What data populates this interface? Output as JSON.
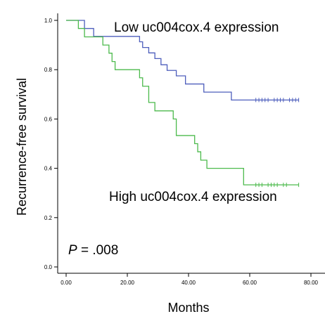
{
  "chart_data": {
    "type": "line",
    "subtype": "kaplan-meier",
    "xlabel": "Months",
    "ylabel": "Recurrence-free survival",
    "xlim": [
      -4,
      82
    ],
    "ylim": [
      0,
      1.03
    ],
    "x_ticks": [
      0,
      20,
      40,
      60,
      80
    ],
    "x_tick_labels": [
      "0.00",
      "20.00",
      "40.00",
      "60.00",
      "80.00"
    ],
    "y_ticks": [
      0,
      0.2,
      0.4,
      0.6,
      0.8,
      1.0
    ],
    "y_tick_labels": [
      "0.0",
      "0.2",
      "0.4",
      "0.6",
      "0.8",
      "1.0"
    ],
    "grid": false,
    "annotations": {
      "low_label": "Low uc004cox.4 expression",
      "high_label": "High uc004cox.4 expression",
      "p_symbol": "P",
      "p_rest": " = .008"
    },
    "series": [
      {
        "key": "low",
        "color": "#4d5ebc",
        "steps": [
          [
            0,
            1.0
          ],
          [
            6,
            0.967
          ],
          [
            9,
            0.935
          ],
          [
            24,
            0.913
          ],
          [
            25,
            0.89
          ],
          [
            27,
            0.868
          ],
          [
            29,
            0.845
          ],
          [
            31,
            0.82
          ],
          [
            33,
            0.797
          ],
          [
            36,
            0.775
          ],
          [
            39,
            0.742
          ],
          [
            45,
            0.709
          ],
          [
            54,
            0.677
          ],
          [
            76,
            0.677
          ]
        ],
        "censored": [
          62,
          63,
          64,
          65,
          66,
          68,
          69,
          70,
          71,
          73,
          74,
          75,
          76
        ]
      },
      {
        "key": "high",
        "color": "#4cba4c",
        "steps": [
          [
            0,
            1.0
          ],
          [
            4,
            0.967
          ],
          [
            6,
            0.933
          ],
          [
            12,
            0.9
          ],
          [
            14,
            0.867
          ],
          [
            15,
            0.833
          ],
          [
            16,
            0.8
          ],
          [
            24,
            0.767
          ],
          [
            25,
            0.733
          ],
          [
            27,
            0.667
          ],
          [
            29,
            0.633
          ],
          [
            35,
            0.6
          ],
          [
            36,
            0.533
          ],
          [
            42,
            0.5
          ],
          [
            43,
            0.467
          ],
          [
            44,
            0.433
          ],
          [
            46,
            0.4
          ],
          [
            58,
            0.333
          ],
          [
            76,
            0.333
          ]
        ],
        "censored": [
          62,
          63,
          64,
          66,
          67,
          68,
          69,
          71,
          72,
          76
        ]
      }
    ]
  }
}
